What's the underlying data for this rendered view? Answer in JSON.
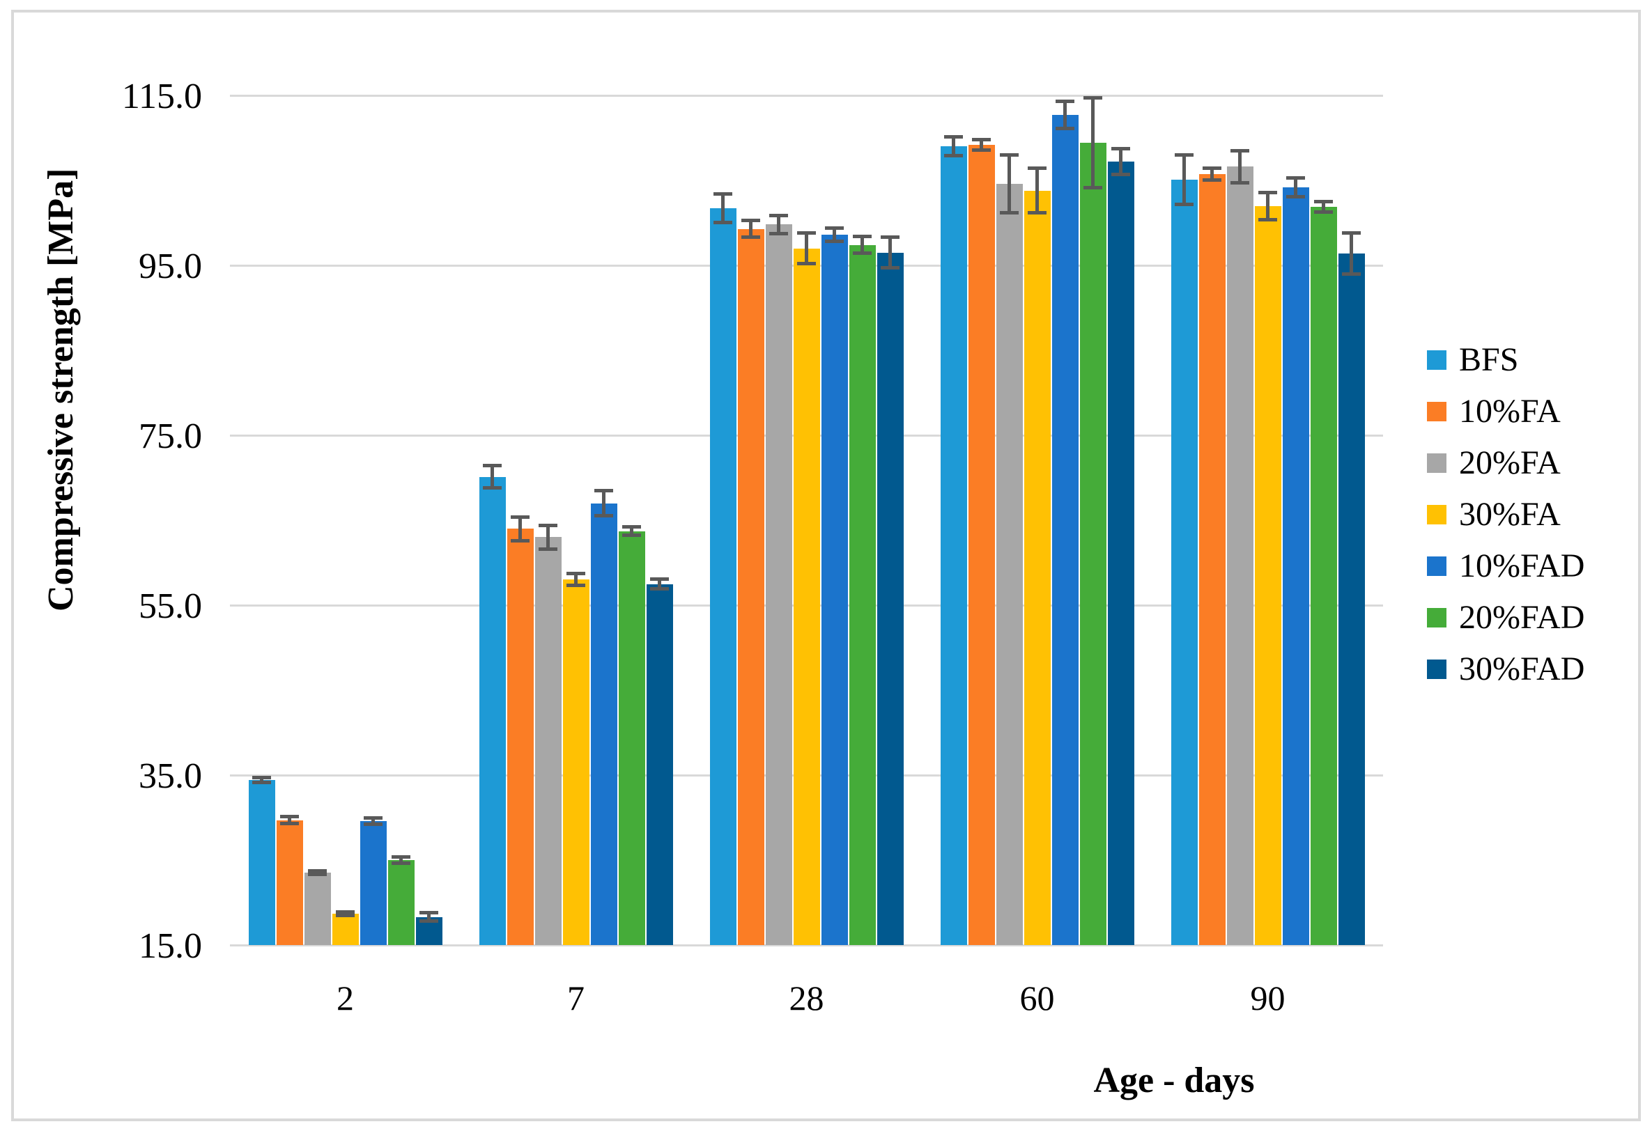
{
  "chart_data": {
    "type": "bar",
    "title": "",
    "xlabel": "Age - days",
    "ylabel": "Compressive strength [MPa]",
    "categories": [
      "2",
      "7",
      "28",
      "60",
      "90"
    ],
    "y_tick_labels": [
      "115.0",
      "95.0",
      "75.0",
      "55.0",
      "35.0",
      "15.0"
    ],
    "ylim": [
      15,
      115
    ],
    "ytick_step": 20,
    "grid": true,
    "legend_position": "right",
    "error_bars": true,
    "series": [
      {
        "name": "BFS",
        "color": "#1e9ad6",
        "values": [
          34.4,
          70.1,
          101.7,
          109.0,
          105.1
        ],
        "errors": [
          0.5,
          1.5,
          1.9,
          1.3,
          3.1
        ]
      },
      {
        "name": "10%FA",
        "color": "#fb7d25",
        "values": [
          29.7,
          64.0,
          99.3,
          109.2,
          105.7
        ],
        "errors": [
          0.6,
          1.6,
          1.2,
          0.8,
          0.9
        ]
      },
      {
        "name": "20%FA",
        "color": "#a7a7a7",
        "values": [
          23.5,
          63.0,
          99.8,
          104.6,
          106.6
        ],
        "errors": [
          0.4,
          1.6,
          1.3,
          3.6,
          2.1
        ]
      },
      {
        "name": "30%FA",
        "color": "#ffc103",
        "values": [
          18.7,
          58.0,
          97.0,
          103.8,
          102.0
        ],
        "errors": [
          0.4,
          0.9,
          2.0,
          2.8,
          1.8
        ]
      },
      {
        "name": "10%FAD",
        "color": "#1b74cc",
        "values": [
          29.6,
          67.0,
          98.6,
          112.7,
          104.2
        ],
        "errors": [
          0.6,
          1.7,
          1.0,
          1.8,
          1.3
        ]
      },
      {
        "name": "20%FAD",
        "color": "#45ac39",
        "values": [
          25.0,
          63.7,
          97.4,
          109.4,
          101.9
        ],
        "errors": [
          0.6,
          0.7,
          1.2,
          5.5,
          0.8
        ]
      },
      {
        "name": "30%FAD",
        "color": "#01598f",
        "values": [
          18.3,
          57.5,
          96.5,
          107.2,
          96.4
        ],
        "errors": [
          0.7,
          0.8,
          2.0,
          1.7,
          2.6
        ]
      }
    ],
    "colors": {
      "gridline": "#d9d9d9",
      "error_bar": "#595959",
      "frame_border": "#d9d9d9",
      "background": "#ffffff",
      "text": "#000000"
    }
  }
}
